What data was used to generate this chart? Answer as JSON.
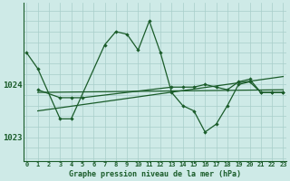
{
  "title": "Graphe pression niveau de la mer (hPa)",
  "background_color": "#ceeae7",
  "grid_color": "#a8ceca",
  "line_color": "#1a5c2a",
  "series": [
    {
      "x": [
        0,
        1,
        3,
        4,
        7,
        8,
        9,
        10,
        11,
        12,
        13,
        14,
        15,
        16,
        17,
        18,
        19,
        20,
        21,
        22,
        23
      ],
      "y": [
        1024.6,
        1024.3,
        1023.35,
        1023.35,
        1024.75,
        1025.0,
        1024.95,
        1024.65,
        1025.2,
        1024.6,
        1023.85,
        1023.6,
        1023.5,
        1023.1,
        1023.25,
        1023.6,
        1024.0,
        1024.05,
        1023.85,
        1023.85,
        1023.85
      ]
    },
    {
      "x": [
        1,
        3,
        4,
        5,
        13,
        14,
        15,
        16,
        17,
        18,
        19,
        20,
        21,
        22,
        23
      ],
      "y": [
        1023.9,
        1023.75,
        1023.75,
        1023.75,
        1023.95,
        1023.95,
        1023.95,
        1024.0,
        1023.95,
        1023.9,
        1024.05,
        1024.1,
        1023.85,
        1023.85,
        1023.85
      ]
    },
    {
      "x": [
        1,
        23
      ],
      "y": [
        1023.5,
        1024.15
      ]
    },
    {
      "x": [
        1,
        23
      ],
      "y": [
        1023.85,
        1023.9
      ]
    }
  ],
  "yticks": [
    1023,
    1024
  ],
  "ylim": [
    1022.55,
    1025.55
  ],
  "xlim": [
    -0.3,
    23.3
  ],
  "xticks": [
    0,
    1,
    2,
    3,
    4,
    5,
    6,
    7,
    8,
    9,
    10,
    11,
    12,
    13,
    14,
    15,
    16,
    17,
    18,
    19,
    20,
    21,
    22,
    23
  ],
  "figsize": [
    3.2,
    2.0
  ],
  "dpi": 100
}
